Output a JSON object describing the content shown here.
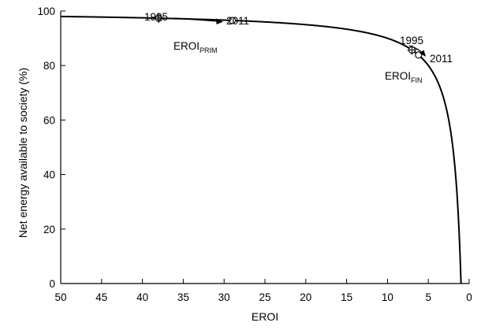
{
  "chart_data": {
    "type": "line",
    "title": "",
    "xlabel": "EROI",
    "ylabel": "Net energy available to society (%)",
    "xlim": [
      50,
      0
    ],
    "ylim": [
      0,
      100
    ],
    "x_reversed": true,
    "x_ticks": [
      50,
      45,
      40,
      35,
      30,
      25,
      20,
      15,
      10,
      5,
      0
    ],
    "y_ticks": [
      0,
      20,
      40,
      60,
      80,
      100
    ],
    "grid": false,
    "curve": {
      "formula": "100 * (1 - 1/EROI)",
      "x": [
        50,
        45,
        40,
        35,
        30,
        25,
        20,
        15,
        12,
        10,
        8,
        7,
        6,
        5,
        4,
        3.5,
        3,
        2.5,
        2,
        1.75,
        1.5,
        1.3,
        1.15,
        1.05,
        1.0
      ],
      "y": [
        98,
        97.78,
        97.5,
        97.14,
        96.67,
        96,
        95,
        93.33,
        91.67,
        90,
        87.5,
        85.71,
        83.33,
        80,
        75,
        71.43,
        66.67,
        60,
        50,
        42.86,
        33.33,
        23.08,
        13.04,
        4.76,
        0
      ]
    },
    "points": [
      {
        "series": "EROI_PRIM",
        "year": "1995",
        "x": 38,
        "y": 97.37,
        "marker": "crosshair-circle"
      },
      {
        "series": "EROI_PRIM",
        "year": "2011",
        "x": 29,
        "y": 96.55,
        "marker": "circle"
      },
      {
        "series": "EROI_FIN",
        "year": "1995",
        "x": 7,
        "y": 85.71,
        "marker": "crosshair-circle"
      },
      {
        "series": "EROI_FIN",
        "year": "2011",
        "x": 6.2,
        "y": 83.87,
        "marker": "circle"
      }
    ],
    "annotations": {
      "prim_label_main": "EROI",
      "prim_label_sub": "PRIM",
      "fin_label_main": "EROI",
      "fin_label_sub": "FIN",
      "prim_year_start": "1995",
      "prim_year_end": "2011",
      "fin_year_start": "1995",
      "fin_year_end": "2011"
    }
  }
}
